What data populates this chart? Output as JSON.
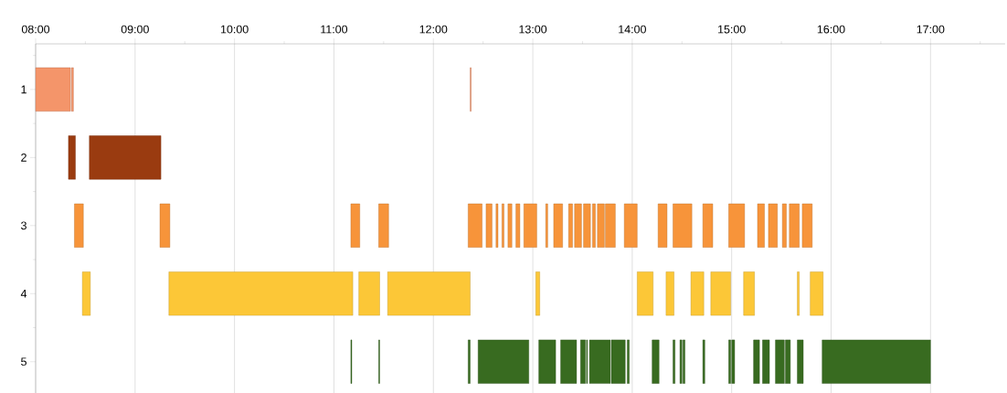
{
  "chart_data": {
    "type": "bar",
    "orientation": "horizontal",
    "grid": "x",
    "categories": [
      "1",
      "2",
      "3",
      "4",
      "5"
    ],
    "xlim": [
      8,
      17.75
    ],
    "xticks": [
      {
        "value": 8,
        "label": "08:00"
      },
      {
        "value": 8.5,
        "label": null
      },
      {
        "value": 9,
        "label": "09:00"
      },
      {
        "value": 9.5,
        "label": null
      },
      {
        "value": 10,
        "label": "10:00"
      },
      {
        "value": 10.5,
        "label": null
      },
      {
        "value": 11,
        "label": "11:00"
      },
      {
        "value": 11.5,
        "label": null
      },
      {
        "value": 12,
        "label": "12:00"
      },
      {
        "value": 12.5,
        "label": null
      },
      {
        "value": 13,
        "label": "13:00"
      },
      {
        "value": 13.5,
        "label": null
      },
      {
        "value": 14,
        "label": "14:00"
      },
      {
        "value": 14.5,
        "label": null
      },
      {
        "value": 15,
        "label": "15:00"
      },
      {
        "value": 15.5,
        "label": null
      },
      {
        "value": 16,
        "label": "16:00"
      },
      {
        "value": 16.5,
        "label": null
      },
      {
        "value": 17,
        "label": "17:00"
      },
      {
        "value": 17.5,
        "label": null
      }
    ],
    "series": [
      {
        "base": [
          8.0,
          8.33,
          8.39,
          8.47,
          11.17
        ],
        "values": [
          0.35,
          0.07,
          0.09,
          0.08,
          0.01
        ],
        "colors": [
          "#f4956a",
          "#9a3b10",
          "#f7943a",
          "#fcc737",
          "#386b20"
        ]
      },
      {
        "base": [
          8.36,
          8.54,
          9.25,
          9.34,
          11.45
        ],
        "values": [
          0.02,
          0.72,
          0.1,
          1.85,
          0.01
        ],
        "colors": [
          "#f4956a",
          "#9a3b10",
          "#f7943a",
          "#fcc737",
          "#386b20"
        ]
      },
      {
        "base": [
          12.37,
          null,
          11.17,
          11.25,
          12.35
        ],
        "values": [
          0.01,
          null,
          0.09,
          0.21,
          0.02
        ],
        "colors": [
          "#f4956a",
          null,
          "#f7943a",
          "#fcc737",
          "#386b20"
        ]
      },
      {
        "base": [
          null,
          null,
          11.45,
          11.54,
          12.45
        ],
        "values": [
          null,
          null,
          0.1,
          0.83,
          0.51
        ],
        "colors": [
          null,
          null,
          "#f7943a",
          "#fcc737",
          "#386b20"
        ]
      },
      {
        "base": [
          null,
          null,
          12.35,
          13.03,
          13.06
        ],
        "values": [
          null,
          null,
          0.14,
          0.04,
          0.17
        ],
        "colors": [
          null,
          null,
          "#f7943a",
          "#fcc737",
          "#386b20"
        ]
      },
      {
        "base": [
          null,
          null,
          12.53,
          14.05,
          13.28
        ],
        "values": [
          null,
          null,
          0.06,
          0.16,
          0.16
        ],
        "colors": [
          null,
          null,
          "#f7943a",
          "#fcc737",
          "#386b20"
        ]
      },
      {
        "base": [
          null,
          null,
          12.63,
          14.34,
          13.48
        ],
        "values": [
          null,
          null,
          0.02,
          0.08,
          0.05
        ],
        "colors": [
          null,
          null,
          "#f7943a",
          "#fcc737",
          "#386b20"
        ]
      },
      {
        "base": [
          null,
          null,
          12.69,
          14.59,
          13.54
        ],
        "values": [
          null,
          null,
          0.02,
          0.13,
          0.01
        ],
        "colors": [
          null,
          null,
          "#f7943a",
          "#fcc737",
          "#386b20"
        ]
      },
      {
        "base": [
          null,
          null,
          12.75,
          14.79,
          13.57
        ],
        "values": [
          null,
          null,
          0.04,
          0.2,
          0.21
        ],
        "colors": [
          null,
          null,
          "#f7943a",
          "#fcc737",
          "#386b20"
        ]
      },
      {
        "base": [
          null,
          null,
          12.83,
          15.12,
          13.79
        ],
        "values": [
          null,
          null,
          0.04,
          0.11,
          0.14
        ],
        "colors": [
          null,
          null,
          "#f7943a",
          "#fcc737",
          "#386b20"
        ]
      },
      {
        "base": [
          null,
          null,
          12.91,
          15.66,
          13.95
        ],
        "values": [
          null,
          null,
          0.13,
          0.02,
          0.02
        ],
        "colors": [
          null,
          null,
          "#f7943a",
          "#fcc737",
          "#386b20"
        ]
      },
      {
        "base": [
          null,
          null,
          13.13,
          15.79,
          14.2
        ],
        "values": [
          null,
          null,
          0.02,
          0.13,
          0.07
        ],
        "colors": [
          null,
          null,
          "#f7943a",
          "#fcc737",
          "#386b20"
        ]
      },
      {
        "base": [
          null,
          null,
          13.21,
          null,
          14.41
        ],
        "values": [
          null,
          null,
          0.09,
          null,
          0.02
        ],
        "colors": [
          null,
          null,
          "#f7943a",
          null,
          "#386b20"
        ]
      },
      {
        "base": [
          null,
          null,
          13.36,
          null,
          14.48
        ],
        "values": [
          null,
          null,
          0.04,
          null,
          0.02
        ],
        "colors": [
          null,
          null,
          "#f7943a",
          null,
          "#386b20"
        ]
      },
      {
        "base": [
          null,
          null,
          13.42,
          null,
          14.51
        ],
        "values": [
          null,
          null,
          0.07,
          null,
          0.02
        ],
        "colors": [
          null,
          null,
          "#f7943a",
          null,
          "#386b20"
        ]
      },
      {
        "base": [
          null,
          null,
          13.51,
          null,
          14.71
        ],
        "values": [
          null,
          null,
          0.07,
          null,
          0.02
        ],
        "colors": [
          null,
          null,
          "#f7943a",
          null,
          "#386b20"
        ]
      },
      {
        "base": [
          null,
          null,
          13.6,
          null,
          14.97
        ],
        "values": [
          null,
          null,
          0.03,
          null,
          0.02
        ],
        "colors": [
          null,
          null,
          "#f7943a",
          null,
          "#386b20"
        ]
      },
      {
        "base": [
          null,
          null,
          13.65,
          null,
          15.0
        ],
        "values": [
          null,
          null,
          0.07,
          null,
          0.03
        ],
        "colors": [
          null,
          null,
          "#f7943a",
          null,
          "#386b20"
        ]
      },
      {
        "base": [
          null,
          null,
          13.73,
          null,
          15.22
        ],
        "values": [
          null,
          null,
          0.1,
          null,
          0.06
        ],
        "colors": [
          null,
          null,
          "#f7943a",
          null,
          "#386b20"
        ]
      },
      {
        "base": [
          null,
          null,
          13.92,
          null,
          15.31
        ],
        "values": [
          null,
          null,
          0.13,
          null,
          0.07
        ],
        "colors": [
          null,
          null,
          "#f7943a",
          null,
          "#386b20"
        ]
      },
      {
        "base": [
          null,
          null,
          14.26,
          null,
          15.44
        ],
        "values": [
          null,
          null,
          0.09,
          null,
          0.09
        ],
        "colors": [
          null,
          null,
          "#f7943a",
          null,
          "#386b20"
        ]
      },
      {
        "base": [
          null,
          null,
          14.41,
          null,
          15.54
        ],
        "values": [
          null,
          null,
          0.19,
          null,
          0.05
        ],
        "colors": [
          null,
          null,
          "#f7943a",
          null,
          "#386b20"
        ]
      },
      {
        "base": [
          null,
          null,
          14.71,
          null,
          15.66
        ],
        "values": [
          null,
          null,
          0.1,
          null,
          0.06
        ],
        "colors": [
          null,
          null,
          "#f7943a",
          null,
          "#386b20"
        ]
      },
      {
        "base": [
          null,
          null,
          14.97,
          null,
          15.91
        ],
        "values": [
          null,
          null,
          0.16,
          null,
          1.09
        ],
        "colors": [
          null,
          null,
          "#f7943a",
          null,
          "#386b20"
        ]
      },
      {
        "base": [
          null,
          null,
          15.26,
          null,
          null
        ],
        "values": [
          null,
          null,
          0.07,
          null,
          null
        ],
        "colors": [
          null,
          null,
          "#f7943a",
          null,
          null
        ]
      },
      {
        "base": [
          null,
          null,
          15.37,
          null,
          null
        ],
        "values": [
          null,
          null,
          0.09,
          null,
          null
        ],
        "colors": [
          null,
          null,
          "#f7943a",
          null,
          null
        ]
      },
      {
        "base": [
          null,
          null,
          15.51,
          null,
          null
        ],
        "values": [
          null,
          null,
          0.04,
          null,
          null
        ],
        "colors": [
          null,
          null,
          "#f7943a",
          null,
          null
        ]
      },
      {
        "base": [
          null,
          null,
          15.58,
          null,
          null
        ],
        "values": [
          null,
          null,
          0.1,
          null,
          null
        ],
        "colors": [
          null,
          null,
          "#f7943a",
          null,
          null
        ]
      },
      {
        "base": [
          null,
          null,
          15.71,
          null,
          null
        ],
        "values": [
          null,
          null,
          0.1,
          null,
          null
        ],
        "colors": [
          null,
          null,
          "#f7943a",
          null,
          null
        ]
      }
    ]
  }
}
